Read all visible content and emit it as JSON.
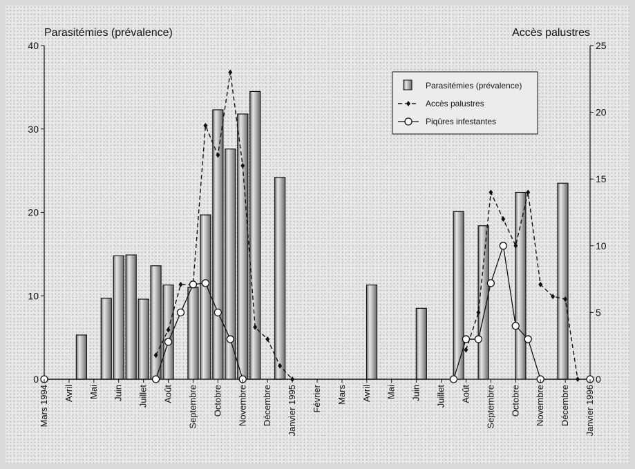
{
  "chart_data": {
    "type": "bar",
    "title": "",
    "ylabel_left": "Parasitémies (prévalence)",
    "ylabel_right": "Accès palustres",
    "ylim_left": [
      0,
      40
    ],
    "ylim_right": [
      0,
      25
    ],
    "yticks_left": [
      "0",
      "10",
      "20",
      "30",
      "40"
    ],
    "yticks_right": [
      "0",
      "5",
      "10",
      "15",
      "20",
      "25"
    ],
    "grid": false,
    "legend_position": "top-right",
    "month_labels": [
      "Mars 1994",
      "Avril",
      "Mai",
      "Juin",
      "Juillet",
      "Août",
      "Septembre",
      "Octobre",
      "Novembre",
      "Décembre",
      "Janvier 1995",
      "Février",
      "Mars",
      "Avril",
      "Mai",
      "Juin",
      "Juillet",
      "Août",
      "Septembre",
      "Octobre",
      "Novembre",
      "Décembre",
      "Janvier 1996"
    ],
    "series": [
      {
        "name": "Parasitémies (prévalence)",
        "type": "bar",
        "axis": "left",
        "points": [
          [
            1.5,
            5.3
          ],
          [
            2.5,
            9.7
          ],
          [
            3.0,
            14.8
          ],
          [
            3.5,
            14.9
          ],
          [
            4.0,
            9.6
          ],
          [
            4.5,
            13.6
          ],
          [
            5.0,
            11.3
          ],
          [
            6.0,
            11.0
          ],
          [
            6.5,
            19.7
          ],
          [
            7.0,
            32.3
          ],
          [
            7.5,
            27.6
          ],
          [
            8.0,
            31.8
          ],
          [
            8.5,
            34.5
          ],
          [
            9.5,
            24.2
          ],
          [
            13.2,
            11.3
          ],
          [
            15.2,
            8.5
          ],
          [
            16.7,
            20.1
          ],
          [
            17.7,
            18.4
          ],
          [
            19.2,
            22.4
          ],
          [
            20.9,
            23.5
          ]
        ]
      },
      {
        "name": "Accès palustres",
        "type": "line",
        "axis": "right",
        "points": [
          [
            4.5,
            1.8
          ],
          [
            5.0,
            3.7
          ],
          [
            5.5,
            7.1
          ],
          [
            6.0,
            7.1
          ],
          [
            6.5,
            19.0
          ],
          [
            7.0,
            16.8
          ],
          [
            7.5,
            23.0
          ],
          [
            8.0,
            16.0
          ],
          [
            8.5,
            3.9
          ],
          [
            9.0,
            3.0
          ],
          [
            9.5,
            1.0
          ],
          [
            10.0,
            0
          ],
          [
            17.0,
            2.2
          ],
          [
            17.5,
            5.0
          ],
          [
            18.0,
            14.0
          ],
          [
            18.5,
            12.0
          ],
          [
            19.0,
            10.0
          ],
          [
            19.5,
            14.0
          ],
          [
            20.0,
            7.1
          ],
          [
            20.5,
            6.2
          ],
          [
            21.0,
            6.0
          ],
          [
            21.5,
            0
          ]
        ]
      },
      {
        "name": "Piqûres infestantes",
        "type": "line",
        "axis": "right",
        "points": [
          [
            0,
            0
          ],
          [
            4.5,
            0
          ],
          [
            5.0,
            2.8
          ],
          [
            5.5,
            5.0
          ],
          [
            6.0,
            7.1
          ],
          [
            6.5,
            7.2
          ],
          [
            7.0,
            5.0
          ],
          [
            7.5,
            3.0
          ],
          [
            8.0,
            0
          ],
          [
            16.5,
            0
          ],
          [
            17.0,
            3.0
          ],
          [
            17.5,
            3.0
          ],
          [
            18.0,
            7.2
          ],
          [
            18.5,
            10.0
          ],
          [
            19.0,
            4.0
          ],
          [
            19.5,
            3.0
          ],
          [
            20.0,
            0
          ],
          [
            22.0,
            0
          ]
        ]
      }
    ]
  }
}
